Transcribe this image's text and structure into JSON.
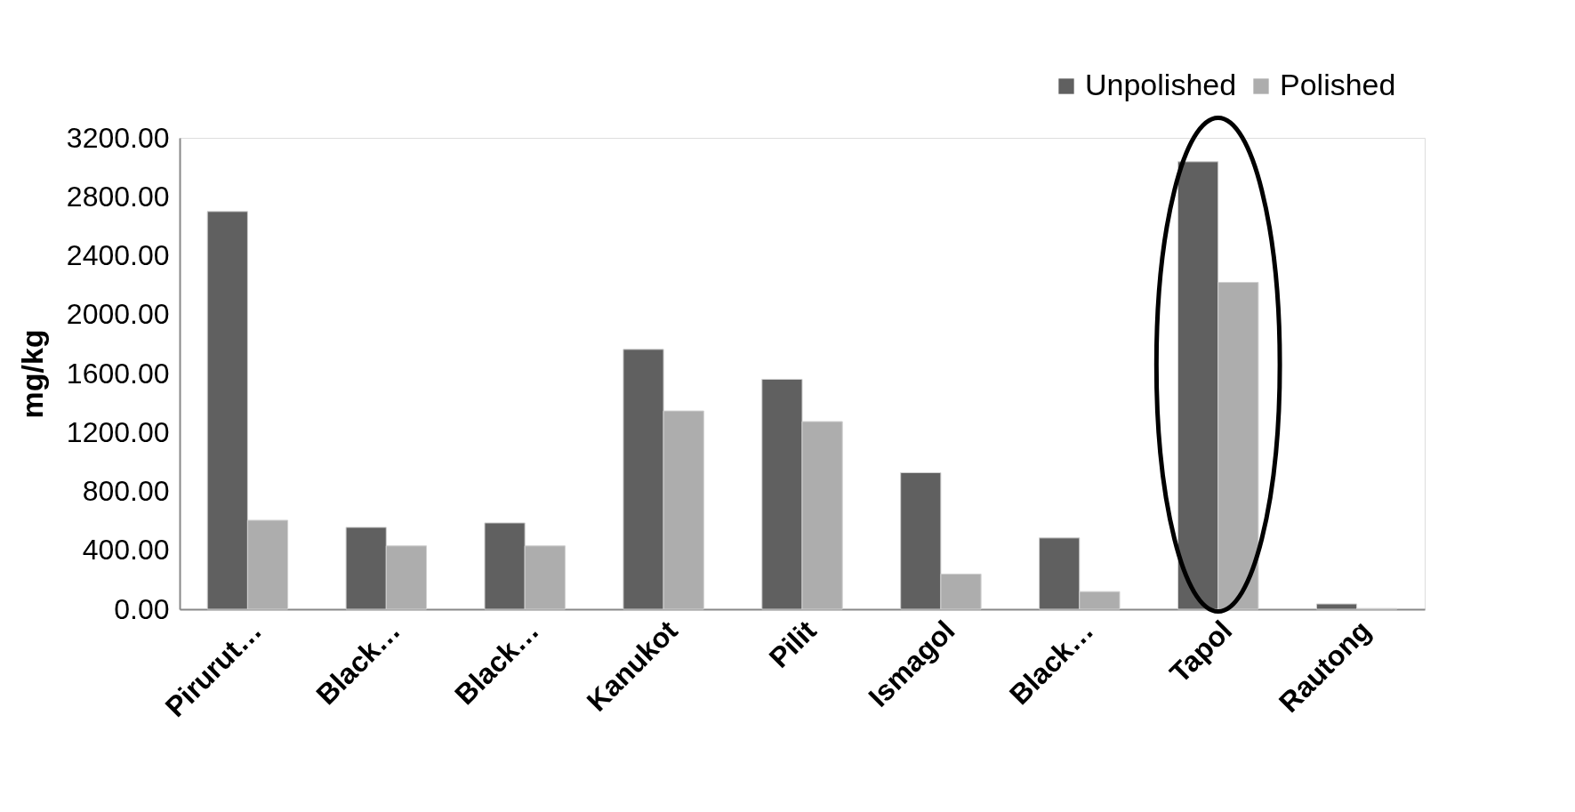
{
  "chart_data": {
    "type": "bar",
    "ylabel": "mg/kg",
    "categories": [
      "Pirurut…",
      "Black…",
      "Black…",
      "Kanukot",
      "Pilit",
      "Ismagol",
      "Black…",
      "Tapol",
      "Rautong"
    ],
    "series": [
      {
        "name": "Unpolished",
        "color": "#606060",
        "values": [
          2700,
          556,
          586,
          1764,
          1561,
          927,
          484,
          3038,
          36
        ]
      },
      {
        "name": "Polished",
        "color": "#adadad",
        "values": [
          604,
          430,
          430,
          1346,
          1274,
          239,
          120,
          2219,
          5
        ]
      }
    ],
    "ylim": [
      0,
      3200
    ],
    "yticks": [
      {
        "value": 0,
        "label": "0.00"
      },
      {
        "value": 400,
        "label": "400.00"
      },
      {
        "value": 800,
        "label": "800.00"
      },
      {
        "value": 1200,
        "label": "1200.00"
      },
      {
        "value": 1600,
        "label": "1600.00"
      },
      {
        "value": 2000,
        "label": "2000.00"
      },
      {
        "value": 2400,
        "label": "2400.00"
      },
      {
        "value": 2800,
        "label": "2800.00"
      },
      {
        "value": 3200,
        "label": "3200.00"
      }
    ],
    "grid": false,
    "legend": "top right"
  }
}
